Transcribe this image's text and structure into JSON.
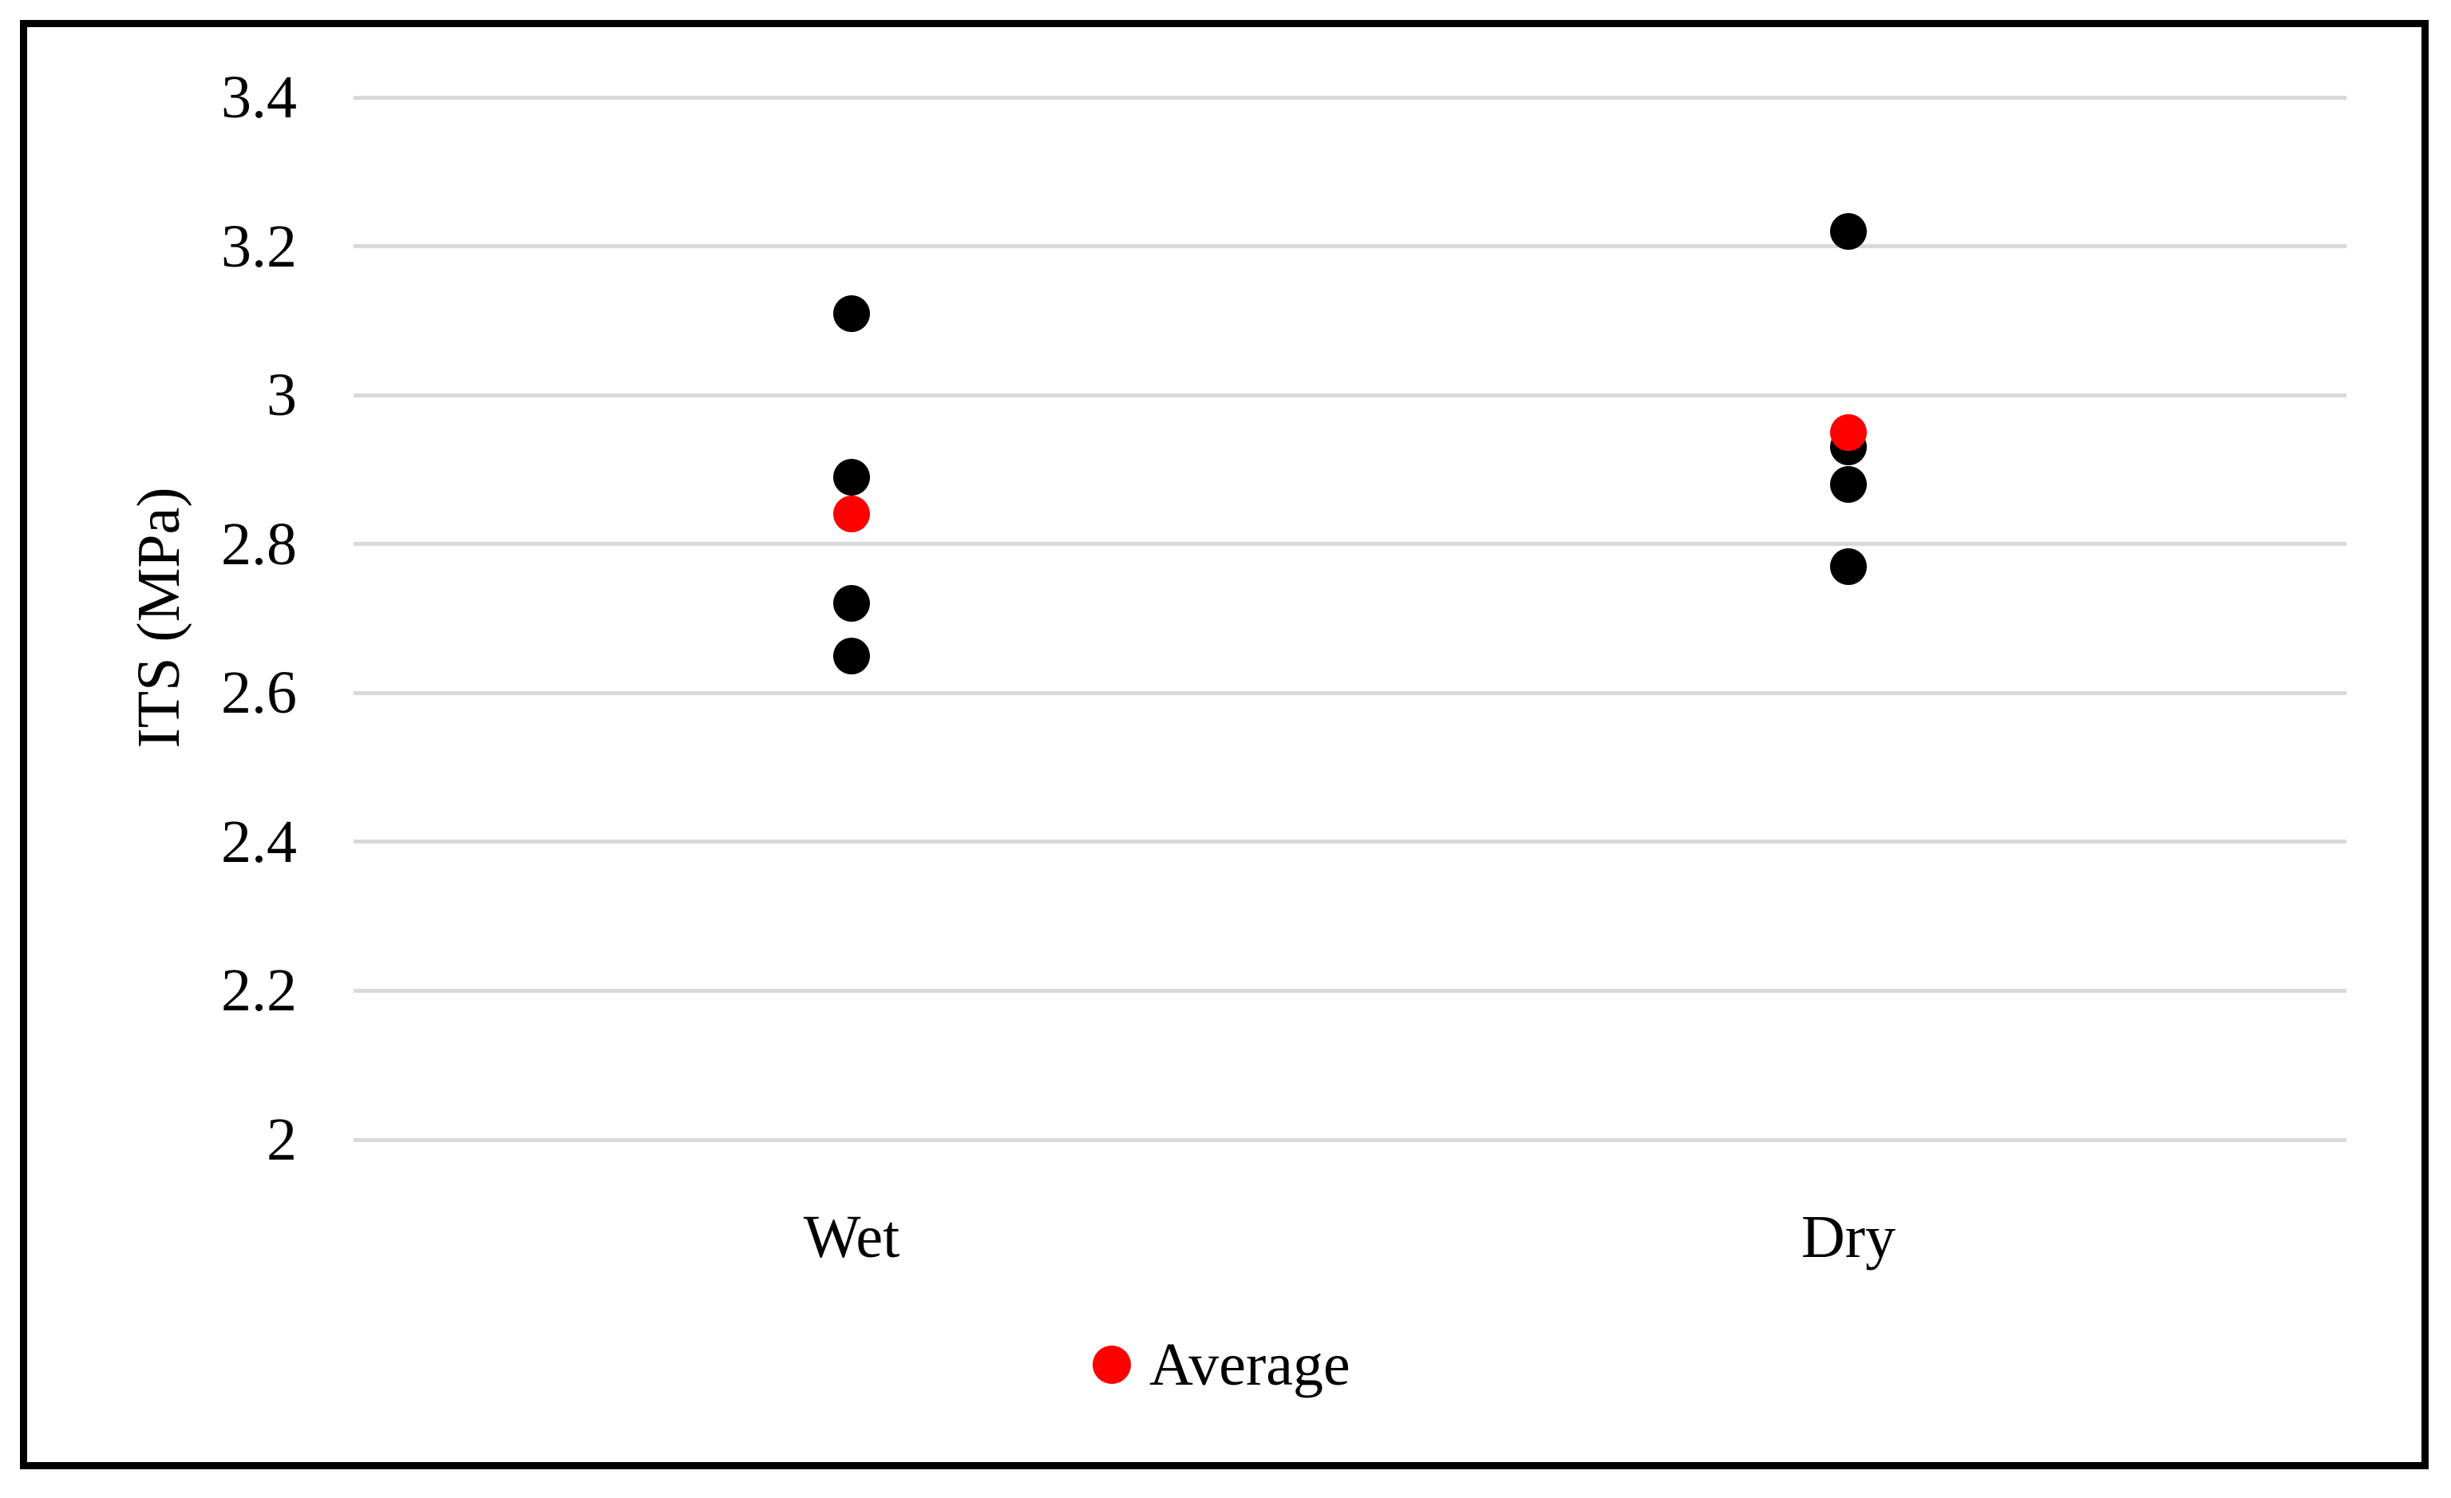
{
  "chart_data": {
    "type": "scatter",
    "title": "",
    "ylabel": "ITS (MPa)",
    "xlabel": "",
    "categories": [
      "Wet",
      "Dry"
    ],
    "y_ticks": [
      "3.4",
      "3.2",
      "3",
      "2.8",
      "2.6",
      "2.4",
      "2.2",
      "2"
    ],
    "ylim": [
      2,
      3.4
    ],
    "grid": true,
    "legend": {
      "label": "Average",
      "color": "#FF0000",
      "position": "bottom-center"
    },
    "series": [
      {
        "name": "",
        "marker": "circle",
        "color": "#000000",
        "values": {
          "Wet": [
            3.11,
            2.89,
            2.72,
            2.65
          ],
          "Dry": [
            3.22,
            2.93,
            2.88,
            2.77
          ]
        }
      },
      {
        "name": "Average",
        "marker": "circle",
        "color": "#FF0000",
        "values": {
          "Wet": [
            2.84
          ],
          "Dry": [
            2.95
          ]
        }
      }
    ]
  },
  "colors": {
    "points": "#000000",
    "average": "#FF0000",
    "gridline": "#D9D9D9",
    "frame": "#000000",
    "background": "#FFFFFF",
    "text": "#000000"
  }
}
